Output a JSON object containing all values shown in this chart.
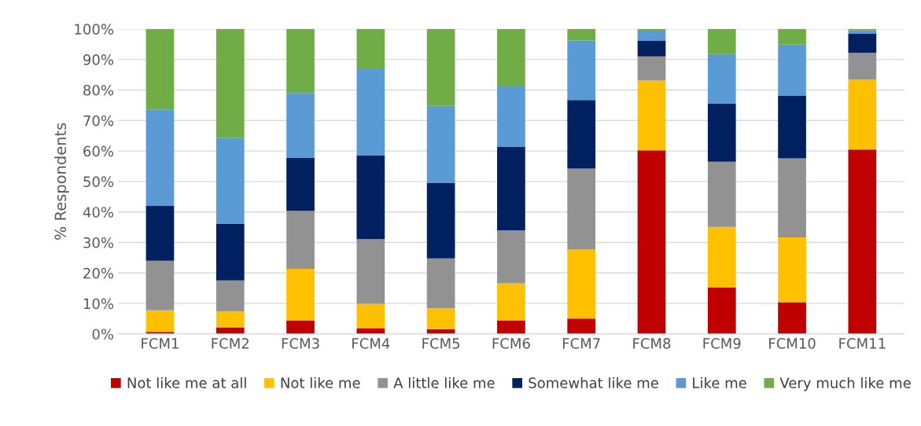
{
  "chart_data": {
    "type": "bar",
    "stacked": true,
    "ylabel": "% Respondents",
    "categories": [
      "FCM1",
      "FCM2",
      "FCM3",
      "FCM4",
      "FCM5",
      "FCM6",
      "FCM7",
      "FCM8",
      "FCM9",
      "FCM10",
      "FCM11"
    ],
    "series": [
      {
        "name": "Not like me at all",
        "color": "#c00000",
        "values": [
          0.7,
          2.2,
          4.4,
          1.9,
          1.6,
          4.4,
          5.1,
          60.2,
          15.3,
          10.4,
          60.5
        ]
      },
      {
        "name": "Not like me",
        "color": "#ffc000",
        "values": [
          7.1,
          5.2,
          17,
          8,
          6.8,
          12.2,
          22.6,
          22.9,
          19.8,
          21.3,
          22.9
        ]
      },
      {
        "name": "A little like me",
        "color": "#929292",
        "values": [
          16.2,
          10.2,
          19,
          21.2,
          16.4,
          17.4,
          26.5,
          7.9,
          21.4,
          25.9,
          8.8
        ]
      },
      {
        "name": "Somewhat like me",
        "color": "#002060",
        "values": [
          18,
          18.6,
          17.3,
          27.5,
          24.8,
          27.3,
          22.5,
          5.1,
          19.1,
          20.6,
          6.2
        ]
      },
      {
        "name": "Like me",
        "color": "#5b9bd5",
        "values": [
          31.5,
          28,
          21.3,
          28.5,
          25.2,
          20.1,
          19.5,
          3.1,
          16.2,
          16.7,
          1.1
        ]
      },
      {
        "name": "Very much like me",
        "color": "#70ad47",
        "values": [
          26.5,
          35.8,
          21,
          12.9,
          25.2,
          18.6,
          3.8,
          0.8,
          8.2,
          5.1,
          0.5
        ]
      }
    ],
    "ylim": [
      0,
      100
    ],
    "yticks": [
      {
        "value": 0,
        "label": "0%"
      },
      {
        "value": 10,
        "label": "10%"
      },
      {
        "value": 20,
        "label": "20%"
      },
      {
        "value": 30,
        "label": "30%"
      },
      {
        "value": 40,
        "label": "40%"
      },
      {
        "value": 50,
        "label": "50%"
      },
      {
        "value": 60,
        "label": "60%"
      },
      {
        "value": 70,
        "label": "70%"
      },
      {
        "value": 80,
        "label": "80%"
      },
      {
        "value": 90,
        "label": "90%"
      },
      {
        "value": 100,
        "label": "100%"
      }
    ],
    "grid": "y",
    "legend": "bottom"
  }
}
